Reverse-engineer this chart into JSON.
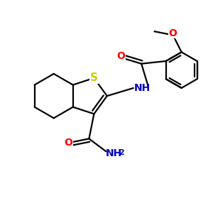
{
  "background_color": "#ffffff",
  "bond_color": "#000000",
  "S_color": "#cccc00",
  "N_color": "#0000cc",
  "O_color": "#ff0000",
  "line_width": 1.6,
  "figsize": [
    3.0,
    3.0
  ],
  "dpi": 100,
  "xlim": [
    0,
    10
  ],
  "ylim": [
    0,
    10
  ]
}
